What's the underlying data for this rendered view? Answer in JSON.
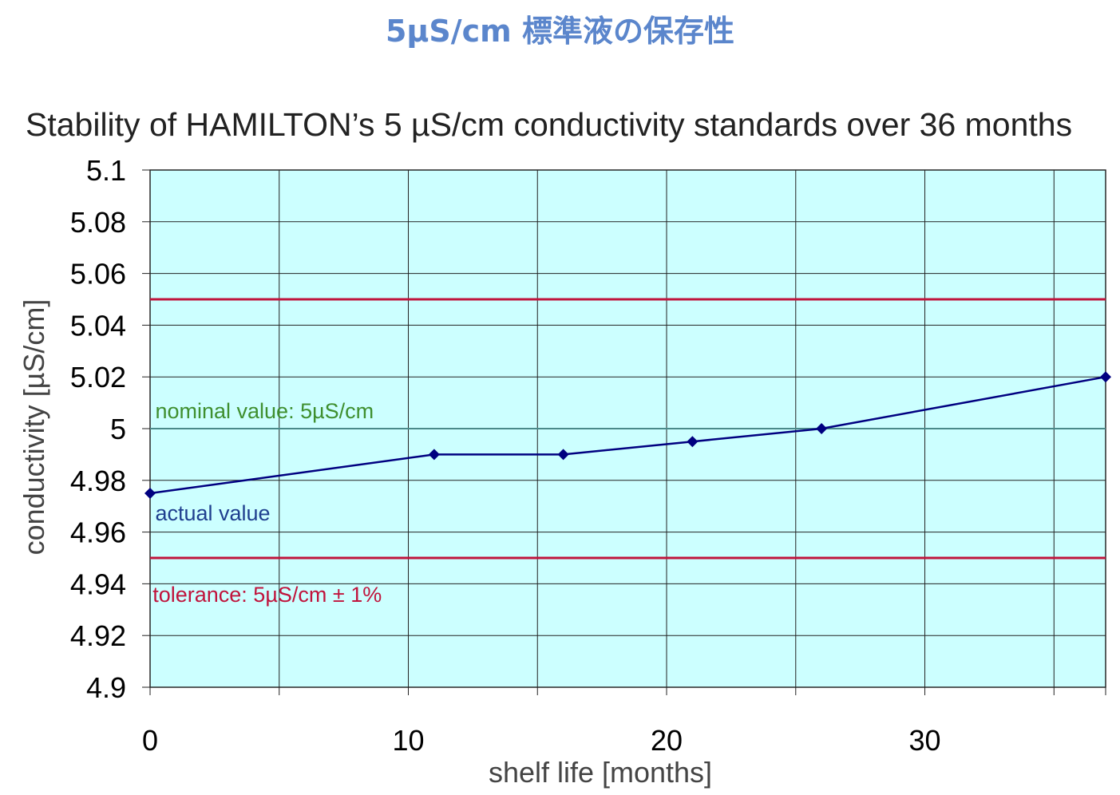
{
  "page": {
    "banner": "5µS/cm 標準液の保存性"
  },
  "chart_data": {
    "type": "line",
    "title": "Stability of HAMILTON’s 5 µS/cm conductivity standards over 36 months",
    "xlabel": "shelf life [months]",
    "ylabel": "conductivity [µS/cm]",
    "xlim": [
      0,
      37
    ],
    "ylim": [
      4.9,
      5.1
    ],
    "x_ticks": [
      0,
      10,
      20,
      30
    ],
    "x_tick_labels": [
      "0",
      "10",
      "20",
      "30"
    ],
    "x_gridlines": [
      0,
      5,
      10,
      15,
      20,
      25,
      30,
      35,
      37
    ],
    "y_ticks": [
      4.9,
      4.92,
      4.94,
      4.96,
      4.98,
      5.0,
      5.02,
      5.04,
      5.06,
      5.08,
      5.1
    ],
    "y_tick_labels": [
      "4.9",
      "4.92",
      "4.94",
      "4.96",
      "4.98",
      "5",
      "5.02",
      "5.04",
      "5.06",
      "5.08",
      "5.1"
    ],
    "grid": true,
    "plot_background": "#ccffff",
    "series": [
      {
        "name": "actual value",
        "color": "#000080",
        "marker": "diamond",
        "x": [
          0,
          11,
          16,
          21,
          26,
          37
        ],
        "y": [
          4.975,
          4.99,
          4.99,
          4.995,
          5.0,
          5.02
        ]
      }
    ],
    "reference_lines": [
      {
        "name": "nominal value",
        "y": 5.0,
        "color": "#4a8a8a"
      },
      {
        "name": "tolerance upper",
        "y": 5.05,
        "color": "#c0143c"
      },
      {
        "name": "tolerance lower",
        "y": 4.95,
        "color": "#c0143c"
      }
    ],
    "annotations": [
      {
        "text": "nominal value: 5µS/cm",
        "color": "#3f8f2f",
        "x": 0.2,
        "y": 5.004
      },
      {
        "text": "actual value",
        "color": "#1f3f8f",
        "x": 0.2,
        "y": 4.9645
      },
      {
        "text": "tolerance: 5µS/cm ± 1%",
        "color": "#c0143c",
        "x": 0.1,
        "y": 4.933
      }
    ]
  }
}
